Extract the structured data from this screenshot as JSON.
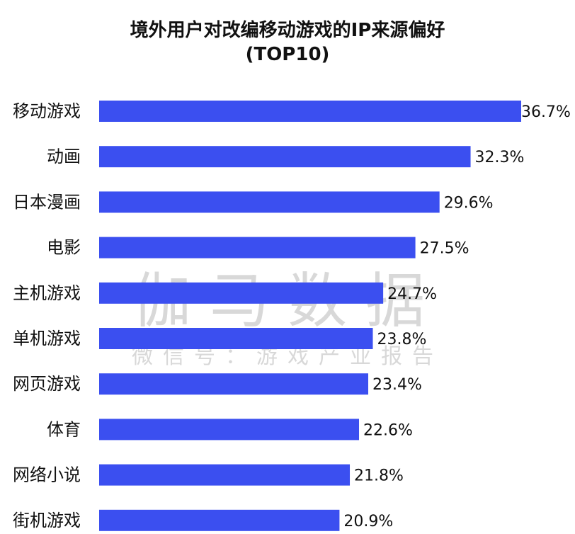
{
  "chart_data": {
    "type": "bar",
    "orientation": "horizontal",
    "title": "境外用户对改编移动游戏的IP来源偏好",
    "subtitle": "(TOP10)",
    "categories": [
      "移动游戏",
      "动画",
      "日本漫画",
      "电影",
      "主机游戏",
      "单机游戏",
      "网页游戏",
      "体育",
      "网络小说",
      "街机游戏"
    ],
    "values": [
      36.7,
      32.3,
      29.6,
      27.5,
      24.7,
      23.8,
      23.4,
      22.6,
      21.8,
      20.9
    ],
    "value_labels": [
      "36.7%",
      "32.3%",
      "29.6%",
      "27.5%",
      "24.7%",
      "23.8%",
      "23.4%",
      "22.6%",
      "21.8%",
      "20.9%"
    ],
    "unit": "%",
    "bar_color": "#3B4FF0",
    "grid": false,
    "legend": "none"
  },
  "watermark": {
    "main": "伽马数据",
    "sub": "微信号：游戏产业报告"
  }
}
